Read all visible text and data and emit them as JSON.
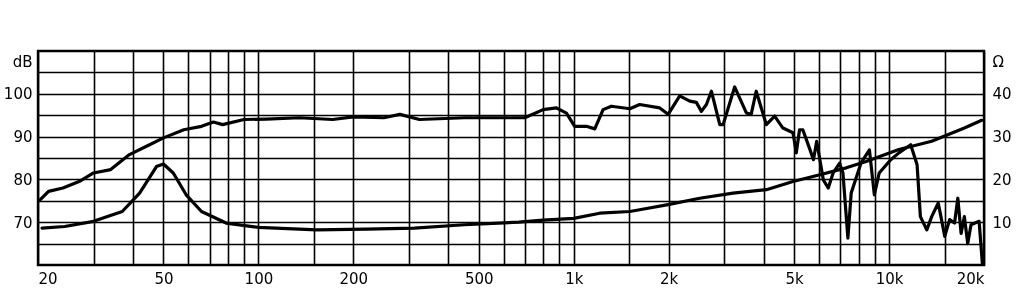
{
  "chart_data": {
    "type": "line",
    "ylabel": "dB",
    "y2label": "Ω",
    "log": "x",
    "grid": true,
    "line_style": "solid",
    "marker": "none",
    "xlim": [
      20,
      20000
    ],
    "xticks": [
      20,
      {
        "value": 30,
        "label": null
      },
      {
        "value": 40,
        "label": null
      },
      50,
      {
        "value": 60,
        "label": null
      },
      {
        "value": 70,
        "label": null
      },
      {
        "value": 80,
        "label": null
      },
      {
        "value": 90,
        "label": null
      },
      100,
      {
        "value": 150,
        "label": null
      },
      200,
      {
        "value": 300,
        "label": null
      },
      {
        "value": 400,
        "label": null
      },
      500,
      {
        "value": 600,
        "label": null
      },
      {
        "value": 700,
        "label": null
      },
      {
        "value": 800,
        "label": null
      },
      {
        "value": 900,
        "label": null
      },
      {
        "value": 1000,
        "label": "1k"
      },
      {
        "value": 1500,
        "label": null
      },
      {
        "value": 2000,
        "label": "2k"
      },
      {
        "value": 3000,
        "label": null
      },
      {
        "value": 4000,
        "label": null
      },
      {
        "value": 5000,
        "label": "5k"
      },
      {
        "value": 6000,
        "label": null
      },
      {
        "value": 7000,
        "label": null
      },
      {
        "value": 8000,
        "label": null
      },
      {
        "value": 9000,
        "label": null
      },
      {
        "value": 10000,
        "label": "10k"
      },
      {
        "value": 15000,
        "label": null
      },
      {
        "value": 20000,
        "label": "20k"
      }
    ],
    "ylim": [
      60,
      110
    ],
    "yticks": [
      {
        "value": 65,
        "label": null
      },
      70,
      {
        "value": 75,
        "label": null
      },
      80,
      {
        "value": 85,
        "label": null
      },
      90,
      {
        "value": 95,
        "label": null
      },
      100,
      {
        "value": 105,
        "label": null
      }
    ],
    "y2lim": [
      0,
      50
    ],
    "y2ticks": [
      10,
      20,
      30,
      40
    ],
    "series": [
      {
        "color": "#000000",
        "x": [
          20.3,
          21.6,
          24,
          27,
          30,
          34,
          39,
          44,
          50,
          58,
          66,
          72,
          77,
          90,
          106,
          135,
          172,
          200,
          250,
          281,
          324,
          450,
          583,
          699,
          800,
          881,
          948,
          1007,
          1097,
          1166,
          1239,
          1316,
          1506,
          1618,
          1873,
          1992,
          2168,
          2333,
          2448,
          2540,
          2635,
          2732,
          2905,
          2977,
          3238,
          3530,
          3653,
          3790,
          4081,
          4336,
          4607,
          4957,
          5078,
          5201,
          5327,
          5616,
          5755,
          5895,
          6186,
          6413,
          6647,
          6970,
          7140,
          7402,
          7584,
          8143,
          8663,
          8980,
          9305,
          10120,
          10742,
          11710,
          12270,
          12570,
          13170,
          13650,
          14320,
          15020,
          15560,
          16130,
          16520,
          16920,
          17330,
          17760,
          18190,
          19300,
          19760
        ],
        "values": [
          75.2,
          77.2,
          78,
          79.5,
          81.5,
          82.3,
          85.8,
          87.7,
          89.7,
          91.6,
          92.4,
          93.4,
          92.8,
          94,
          94.1,
          94.4,
          94,
          94.6,
          94.4,
          95.2,
          94,
          94.4,
          94.4,
          94.4,
          96.3,
          96.7,
          95.5,
          92.4,
          92.4,
          91.8,
          96.3,
          97.1,
          96.5,
          97.5,
          96.7,
          95.2,
          99.5,
          98.3,
          98,
          95.9,
          97.5,
          100.6,
          92.8,
          92.8,
          101.6,
          95.5,
          95.2,
          100.6,
          92.8,
          94.8,
          92,
          90.9,
          86.2,
          91.6,
          91.6,
          86.9,
          84.6,
          88.9,
          79.9,
          78,
          81.5,
          83.8,
          81.5,
          66.3,
          76.8,
          83.8,
          86.9,
          76.4,
          81.5,
          84.6,
          86.2,
          88.1,
          83.4,
          71.3,
          68.2,
          71.3,
          74.5,
          66.7,
          70.6,
          69.8,
          75.6,
          67.4,
          71.3,
          65,
          69.4,
          70.2,
          60.4
        ]
      },
      {
        "color": "#000000",
        "axis": "y2",
        "x": [
          20.6,
          24.3,
          30,
          37,
          42,
          47.5,
          50,
          53.7,
          59,
          66,
          79,
          100,
          153,
          220,
          312,
          450,
          670,
          800,
          1000,
          1209,
          1506,
          1618,
          1992,
          2510,
          3200,
          4081,
          4957,
          6035,
          7315,
          8455,
          10742,
          13650,
          17330,
          19670
        ],
        "values": [
          8.6,
          9,
          10.2,
          12.5,
          16.8,
          23,
          23.6,
          21.5,
          16.4,
          12.5,
          9.8,
          8.8,
          8.2,
          8.4,
          8.6,
          9.4,
          10,
          10.5,
          10.9,
          12.1,
          12.5,
          12.9,
          14.1,
          15.6,
          16.8,
          17.6,
          19.5,
          21.1,
          22.7,
          24.2,
          27,
          28.9,
          32,
          33.8
        ]
      }
    ]
  }
}
